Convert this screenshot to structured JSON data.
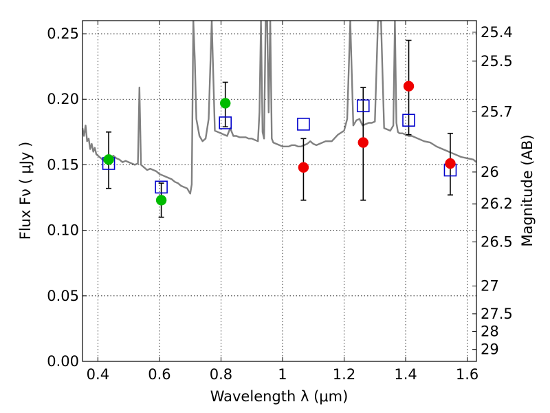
{
  "chart_data": {
    "type": "scatter",
    "xlabel": "Wavelength  λ (μm)",
    "ylabel": "Flux  Fν  ( μJy )",
    "y2label": "Magnitude (AB)",
    "xlim": [
      0.35,
      1.63
    ],
    "ylim": [
      0.0,
      0.26
    ],
    "x_ticks": [
      0.4,
      0.6,
      0.8,
      1.0,
      1.2,
      1.4,
      1.6
    ],
    "x_tick_labels": [
      "0.4",
      "0.6",
      "0.8",
      "1",
      "1.2",
      "1.4",
      "1.6"
    ],
    "y_ticks": [
      0.0,
      0.05,
      0.1,
      0.15,
      0.2,
      0.25
    ],
    "y_tick_labels": [
      "0.00",
      "0.05",
      "0.10",
      "0.15",
      "0.20",
      "0.25"
    ],
    "y2_ticks": [
      {
        "label": "25.4",
        "flux": 0.2512
      },
      {
        "label": "25.5",
        "flux": 0.2291
      },
      {
        "label": "25.7",
        "flux": 0.1905
      },
      {
        "label": "26",
        "flux": 0.1445
      },
      {
        "label": "26.2",
        "flux": 0.1202
      },
      {
        "label": "26.5",
        "flux": 0.0912
      },
      {
        "label": "27",
        "flux": 0.0575
      },
      {
        "label": "27.5",
        "flux": 0.0363
      },
      {
        "label": "28",
        "flux": 0.0229
      },
      {
        "label": "29",
        "flux": 0.0091
      }
    ],
    "grid": true,
    "colors": {
      "model": "#808080",
      "green_points": "#00bb00",
      "red_points": "#ee0000",
      "boxes": "#0000cc",
      "errorbars": "#000000"
    },
    "series": [
      {
        "marker": "line",
        "color": "#808080",
        "x": [
          0.35,
          0.355,
          0.36,
          0.365,
          0.37,
          0.375,
          0.38,
          0.385,
          0.39,
          0.395,
          0.4,
          0.41,
          0.42,
          0.43,
          0.44,
          0.45,
          0.46,
          0.47,
          0.48,
          0.49,
          0.5,
          0.51,
          0.52,
          0.53,
          0.535,
          0.54,
          0.55,
          0.56,
          0.57,
          0.58,
          0.59,
          0.6,
          0.61,
          0.62,
          0.63,
          0.64,
          0.65,
          0.66,
          0.67,
          0.68,
          0.69,
          0.7,
          0.705,
          0.71,
          0.715,
          0.72,
          0.73,
          0.74,
          0.75,
          0.76,
          0.77,
          0.78,
          0.79,
          0.8,
          0.81,
          0.82,
          0.83,
          0.84,
          0.85,
          0.86,
          0.87,
          0.88,
          0.89,
          0.9,
          0.91,
          0.92,
          0.925,
          0.93,
          0.935,
          0.94,
          0.945,
          0.95,
          0.955,
          0.96,
          0.965,
          0.97,
          0.98,
          0.99,
          1.0,
          1.01,
          1.02,
          1.03,
          1.04,
          1.05,
          1.06,
          1.07,
          1.08,
          1.09,
          1.1,
          1.11,
          1.12,
          1.14,
          1.16,
          1.18,
          1.2,
          1.21,
          1.22,
          1.23,
          1.24,
          1.25,
          1.26,
          1.27,
          1.28,
          1.29,
          1.3,
          1.31,
          1.32,
          1.33,
          1.34,
          1.35,
          1.36,
          1.365,
          1.37,
          1.375,
          1.38,
          1.39,
          1.4,
          1.41,
          1.42,
          1.44,
          1.46,
          1.48,
          1.5,
          1.52,
          1.54,
          1.56,
          1.58,
          1.6,
          1.62,
          1.63
        ],
        "y": [
          0.178,
          0.172,
          0.18,
          0.168,
          0.17,
          0.162,
          0.166,
          0.16,
          0.163,
          0.158,
          0.157,
          0.155,
          0.153,
          0.156,
          0.154,
          0.157,
          0.155,
          0.154,
          0.152,
          0.153,
          0.152,
          0.151,
          0.15,
          0.151,
          0.209,
          0.15,
          0.148,
          0.146,
          0.147,
          0.146,
          0.145,
          0.143,
          0.142,
          0.141,
          0.14,
          0.139,
          0.137,
          0.136,
          0.134,
          0.133,
          0.132,
          0.128,
          0.135,
          0.26,
          0.23,
          0.185,
          0.172,
          0.168,
          0.17,
          0.185,
          0.26,
          0.176,
          0.175,
          0.174,
          0.173,
          0.172,
          0.178,
          0.172,
          0.172,
          0.171,
          0.171,
          0.171,
          0.17,
          0.17,
          0.169,
          0.168,
          0.19,
          0.26,
          0.175,
          0.17,
          0.26,
          0.26,
          0.19,
          0.26,
          0.17,
          0.167,
          0.166,
          0.165,
          0.164,
          0.164,
          0.164,
          0.165,
          0.165,
          0.164,
          0.164,
          0.165,
          0.166,
          0.168,
          0.166,
          0.165,
          0.166,
          0.168,
          0.168,
          0.173,
          0.176,
          0.185,
          0.26,
          0.18,
          0.184,
          0.185,
          0.18,
          0.181,
          0.182,
          0.182,
          0.183,
          0.26,
          0.26,
          0.178,
          0.177,
          0.176,
          0.18,
          0.26,
          0.182,
          0.175,
          0.174,
          0.174,
          0.173,
          0.172,
          0.172,
          0.17,
          0.168,
          0.167,
          0.164,
          0.162,
          0.16,
          0.158,
          0.156,
          0.155,
          0.154,
          0.152
        ]
      },
      {
        "marker": "circle",
        "color": "#00bb00",
        "points": [
          {
            "x": 0.435,
            "y": 0.154
          },
          {
            "x": 0.606,
            "y": 0.123
          },
          {
            "x": 0.814,
            "y": 0.197
          }
        ]
      },
      {
        "marker": "circle",
        "color": "#ee0000",
        "points": [
          {
            "x": 1.068,
            "y": 0.148
          },
          {
            "x": 1.262,
            "y": 0.167
          },
          {
            "x": 1.41,
            "y": 0.21
          },
          {
            "x": 1.545,
            "y": 0.151
          }
        ]
      },
      {
        "marker": "square",
        "color": "#0000cc",
        "points": [
          {
            "x": 0.435,
            "y": 0.151
          },
          {
            "x": 0.606,
            "y": 0.133
          },
          {
            "x": 0.814,
            "y": 0.182
          },
          {
            "x": 1.068,
            "y": 0.181
          },
          {
            "x": 1.262,
            "y": 0.195
          },
          {
            "x": 1.41,
            "y": 0.184
          },
          {
            "x": 1.545,
            "y": 0.146
          }
        ]
      },
      {
        "marker": "errorbar",
        "color": "#000000",
        "bars": [
          {
            "x": 0.435,
            "low": 0.132,
            "high": 0.175
          },
          {
            "x": 0.606,
            "low": 0.11,
            "high": 0.136
          },
          {
            "x": 0.814,
            "low": 0.179,
            "high": 0.213
          },
          {
            "x": 1.068,
            "low": 0.123,
            "high": 0.17
          },
          {
            "x": 1.262,
            "low": 0.123,
            "high": 0.209
          },
          {
            "x": 1.41,
            "low": 0.173,
            "high": 0.245
          },
          {
            "x": 1.545,
            "low": 0.127,
            "high": 0.174
          }
        ]
      }
    ]
  }
}
